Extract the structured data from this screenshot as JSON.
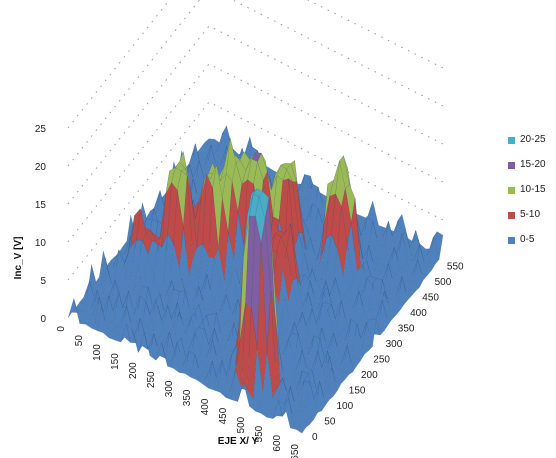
{
  "chart_data": {
    "type": "surface",
    "ylabel": "Inc_V [V]",
    "xlabel": "EJE X/ Y",
    "z_ticks": [
      "0",
      "5",
      "10",
      "15",
      "20",
      "25"
    ],
    "x_ticks": [
      "0",
      "50",
      "100",
      "150",
      "200",
      "250",
      "300",
      "350",
      "400",
      "450",
      "500",
      "550",
      "600",
      "650"
    ],
    "y_ticks": [
      "0",
      "50",
      "100",
      "150",
      "200",
      "250",
      "300",
      "350",
      "400",
      "450",
      "500",
      "550"
    ],
    "zlim": [
      0,
      25
    ],
    "grid": true,
    "legend_position": "right",
    "legend": [
      {
        "label": "20-25",
        "color": "#4aacc6"
      },
      {
        "label": "15-20",
        "color": "#7f5ea2"
      },
      {
        "label": "10-15",
        "color": "#9aba55"
      },
      {
        "label": "5-10",
        "color": "#be4b48"
      },
      {
        "label": "0-5",
        "color": "#4f81bd"
      }
    ],
    "peaks": [
      {
        "x": 480,
        "y": 70,
        "z": 25
      },
      {
        "x": 150,
        "y": 230,
        "z": 14
      },
      {
        "x": 210,
        "y": 280,
        "z": 12
      },
      {
        "x": 250,
        "y": 310,
        "z": 14
      },
      {
        "x": 400,
        "y": 280,
        "z": 9
      },
      {
        "x": 300,
        "y": 330,
        "z": 15
      },
      {
        "x": 350,
        "y": 370,
        "z": 13
      },
      {
        "x": 470,
        "y": 420,
        "z": 12
      },
      {
        "x": 90,
        "y": 180,
        "z": 6
      }
    ]
  }
}
